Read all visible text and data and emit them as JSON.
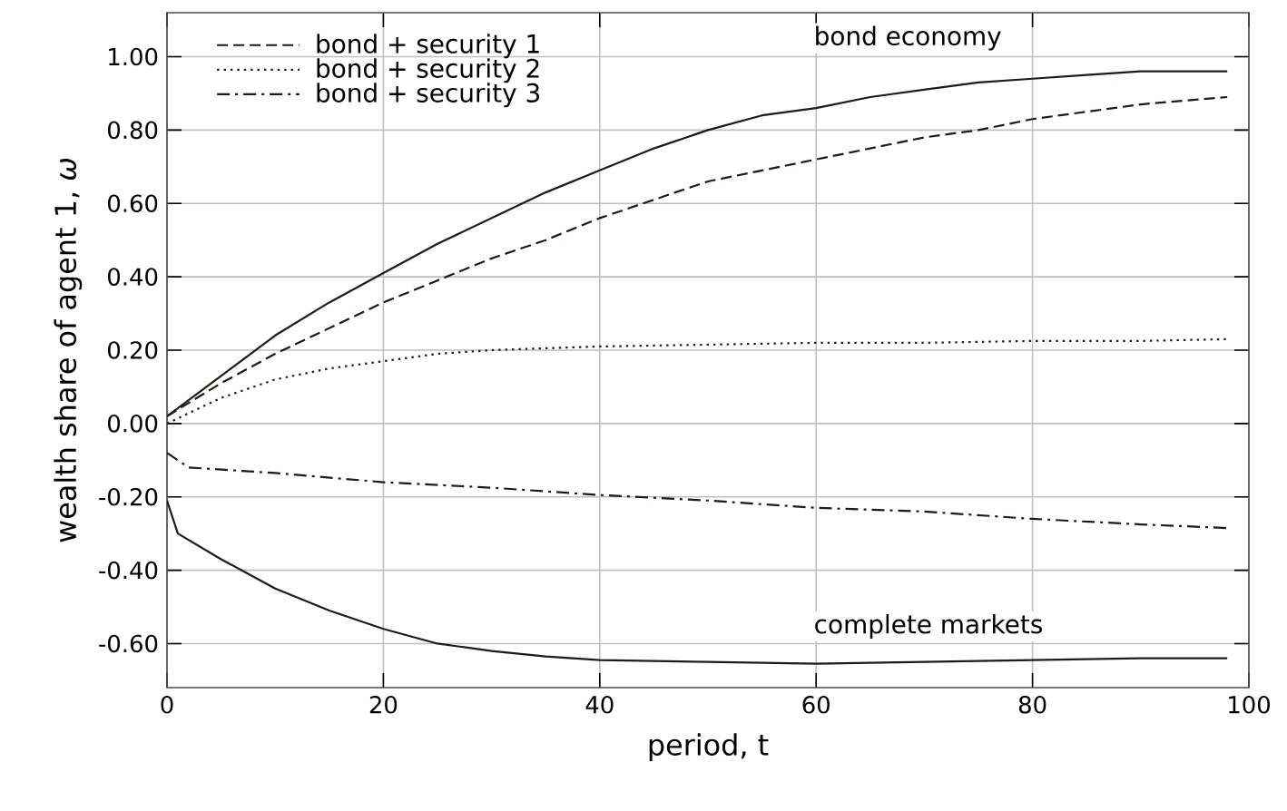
{
  "chart_data": {
    "type": "line",
    "xlabel": "period, t",
    "ylabel": "wealth share of agent 1, *ω*",
    "xlim": [
      0,
      100
    ],
    "ylim": [
      -0.72,
      1.12
    ],
    "xticks": [
      0,
      20,
      40,
      60,
      80,
      100
    ],
    "yticks": [
      {
        "value": -0.6,
        "label": "-0.60"
      },
      {
        "value": -0.4,
        "label": "-0.40"
      },
      {
        "value": -0.2,
        "label": "-0.20"
      },
      {
        "value": 0,
        "label": "0.00"
      },
      {
        "value": 0.2,
        "label": "0.20"
      },
      {
        "value": 0.4,
        "label": "0.40"
      },
      {
        "value": 0.6,
        "label": "0.60"
      },
      {
        "value": 0.8,
        "label": "0.80"
      },
      {
        "value": 1,
        "label": "1.00"
      }
    ],
    "grid": true,
    "legend": "top left",
    "annotations": [
      "bond economy",
      "complete markets"
    ],
    "series": [
      {
        "color": "#231815",
        "line_style": "solid",
        "x": [
          0,
          5,
          10,
          15,
          20,
          25,
          30,
          35,
          40,
          45,
          50,
          55,
          60,
          65,
          70,
          75,
          80,
          85,
          90,
          98
        ],
        "values": [
          0.02,
          0.13,
          0.24,
          0.33,
          0.41,
          0.49,
          0.56,
          0.63,
          0.69,
          0.75,
          0.8,
          0.84,
          0.86,
          0.89,
          0.91,
          0.93,
          0.94,
          0.95,
          0.96,
          0.96
        ]
      },
      {
        "name": "bond + security 1",
        "color": "#231815",
        "line_style": "dashed",
        "x": [
          0,
          5,
          10,
          15,
          20,
          25,
          30,
          35,
          40,
          45,
          50,
          55,
          60,
          65,
          70,
          75,
          80,
          85,
          90,
          98
        ],
        "values": [
          0.02,
          0.11,
          0.19,
          0.26,
          0.33,
          0.39,
          0.45,
          0.5,
          0.56,
          0.61,
          0.66,
          0.69,
          0.72,
          0.75,
          0.78,
          0.8,
          0.83,
          0.85,
          0.87,
          0.89
        ]
      },
      {
        "name": "bond + security 2",
        "color": "#231815",
        "line_style": "dotted",
        "x": [
          0,
          5,
          10,
          15,
          20,
          25,
          30,
          40,
          50,
          60,
          70,
          80,
          90,
          98
        ],
        "values": [
          0.0,
          0.07,
          0.12,
          0.15,
          0.17,
          0.19,
          0.2,
          0.21,
          0.215,
          0.22,
          0.22,
          0.225,
          0.225,
          0.23
        ]
      },
      {
        "name": "bond + security 3",
        "color": "#231815",
        "line_style": "dashdot",
        "x": [
          0,
          2,
          10,
          20,
          30,
          40,
          50,
          60,
          70,
          80,
          90,
          98
        ],
        "values": [
          -0.08,
          -0.12,
          -0.135,
          -0.16,
          -0.175,
          -0.195,
          -0.21,
          -0.23,
          -0.24,
          -0.26,
          -0.275,
          -0.285
        ]
      },
      {
        "color": "#231815",
        "line_style": "solid",
        "x": [
          0,
          1,
          5,
          10,
          15,
          20,
          25,
          30,
          35,
          40,
          50,
          60,
          70,
          80,
          90,
          98
        ],
        "values": [
          -0.21,
          -0.3,
          -0.37,
          -0.45,
          -0.51,
          -0.56,
          -0.6,
          -0.62,
          -0.635,
          -0.645,
          -0.65,
          -0.655,
          -0.65,
          -0.645,
          -0.64,
          -0.64
        ]
      }
    ]
  }
}
